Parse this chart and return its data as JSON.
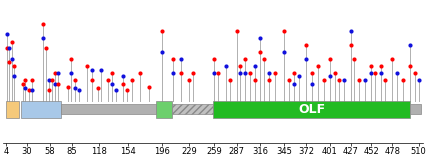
{
  "x_ticks": [
    4,
    30,
    58,
    85,
    118,
    154,
    196,
    229,
    259,
    287,
    316,
    345,
    372,
    401,
    427,
    452,
    478,
    510
  ],
  "x_min": 1,
  "x_max": 515,
  "y_min": 0,
  "y_max": 10,
  "domain_base": 1.8,
  "domain_height_full": 1.2,
  "domain_height_thin": 0.7,
  "domains": [
    {
      "start": 4,
      "end": 20,
      "color": "#F5C97A",
      "label": "",
      "thin": false,
      "hatch": false
    },
    {
      "start": 22,
      "end": 72,
      "color": "#A8C8E8",
      "label": "",
      "thin": false,
      "hatch": false
    },
    {
      "start": 72,
      "end": 188,
      "color": "#B0B0B0",
      "label": "",
      "thin": true,
      "hatch": false
    },
    {
      "start": 188,
      "end": 208,
      "color": "#6CCF6C",
      "label": "",
      "thin": false,
      "hatch": false
    },
    {
      "start": 208,
      "end": 258,
      "color": "#C0C0C0",
      "label": "",
      "thin": true,
      "hatch": true
    },
    {
      "start": 258,
      "end": 500,
      "color": "#22BB22",
      "label": "OLF",
      "thin": false,
      "hatch": false
    },
    {
      "start": 500,
      "end": 513,
      "color": "#B0B0B0",
      "label": "",
      "thin": true,
      "hatch": false
    }
  ],
  "lollipops": [
    {
      "x": 5,
      "stems": [
        {
          "color": "red",
          "y": 6.8
        },
        {
          "color": "blue",
          "y": 7.8
        }
      ]
    },
    {
      "x": 8,
      "stems": [
        {
          "color": "red",
          "y": 5.8
        },
        {
          "color": "blue",
          "y": 6.8
        }
      ]
    },
    {
      "x": 11,
      "stems": [
        {
          "color": "red",
          "y": 7.2
        },
        {
          "color": "blue",
          "y": 6.0
        }
      ]
    },
    {
      "x": 14,
      "stems": [
        {
          "color": "red",
          "y": 5.5
        },
        {
          "color": "blue",
          "y": 4.8
        }
      ]
    },
    {
      "x": 25,
      "stems": [
        {
          "color": "red",
          "y": 4.2
        }
      ]
    },
    {
      "x": 28,
      "stems": [
        {
          "color": "red",
          "y": 4.5
        },
        {
          "color": "blue",
          "y": 3.9
        }
      ]
    },
    {
      "x": 32,
      "stems": [
        {
          "color": "red",
          "y": 3.8
        }
      ]
    },
    {
      "x": 36,
      "stems": [
        {
          "color": "red",
          "y": 4.5
        },
        {
          "color": "blue",
          "y": 3.8
        }
      ]
    },
    {
      "x": 50,
      "stems": [
        {
          "color": "red",
          "y": 8.5
        },
        {
          "color": "blue",
          "y": 7.5
        }
      ]
    },
    {
      "x": 53,
      "stems": [
        {
          "color": "red",
          "y": 6.8
        }
      ]
    },
    {
      "x": 57,
      "stems": [
        {
          "color": "red",
          "y": 3.8
        },
        {
          "color": "blue",
          "y": 4.5
        }
      ]
    },
    {
      "x": 60,
      "stems": [
        {
          "color": "red",
          "y": 4.5
        }
      ]
    },
    {
      "x": 64,
      "stems": [
        {
          "color": "red",
          "y": 5.0
        },
        {
          "color": "blue",
          "y": 4.2
        }
      ]
    },
    {
      "x": 68,
      "stems": [
        {
          "color": "red",
          "y": 4.2
        },
        {
          "color": "blue",
          "y": 5.0
        }
      ]
    },
    {
      "x": 80,
      "stems": [
        {
          "color": "red",
          "y": 4.0
        }
      ]
    },
    {
      "x": 84,
      "stems": [
        {
          "color": "red",
          "y": 6.0
        },
        {
          "color": "blue",
          "y": 5.0
        }
      ]
    },
    {
      "x": 89,
      "stems": [
        {
          "color": "red",
          "y": 4.5
        },
        {
          "color": "blue",
          "y": 3.9
        }
      ]
    },
    {
      "x": 94,
      "stems": [
        {
          "color": "blue",
          "y": 3.8
        }
      ]
    },
    {
      "x": 104,
      "stems": [
        {
          "color": "red",
          "y": 5.5
        }
      ]
    },
    {
      "x": 109,
      "stems": [
        {
          "color": "red",
          "y": 4.5
        },
        {
          "color": "blue",
          "y": 5.2
        }
      ]
    },
    {
      "x": 117,
      "stems": [
        {
          "color": "red",
          "y": 3.9
        }
      ]
    },
    {
      "x": 121,
      "stems": [
        {
          "color": "blue",
          "y": 5.2
        }
      ]
    },
    {
      "x": 129,
      "stems": [
        {
          "color": "red",
          "y": 4.5
        }
      ]
    },
    {
      "x": 134,
      "stems": [
        {
          "color": "red",
          "y": 5.0
        },
        {
          "color": "blue",
          "y": 4.2
        }
      ]
    },
    {
      "x": 139,
      "stems": [
        {
          "color": "blue",
          "y": 3.8
        }
      ]
    },
    {
      "x": 147,
      "stems": [
        {
          "color": "red",
          "y": 4.2
        },
        {
          "color": "blue",
          "y": 4.8
        }
      ]
    },
    {
      "x": 153,
      "stems": [
        {
          "color": "red",
          "y": 3.8
        }
      ]
    },
    {
      "x": 159,
      "stems": [
        {
          "color": "red",
          "y": 4.5
        }
      ]
    },
    {
      "x": 169,
      "stems": [
        {
          "color": "red",
          "y": 5.0
        }
      ]
    },
    {
      "x": 180,
      "stems": [
        {
          "color": "red",
          "y": 4.0
        }
      ]
    },
    {
      "x": 196,
      "stems": [
        {
          "color": "red",
          "y": 8.0
        },
        {
          "color": "blue",
          "y": 6.5
        }
      ]
    },
    {
      "x": 209,
      "stems": [
        {
          "color": "red",
          "y": 6.0
        },
        {
          "color": "blue",
          "y": 5.0
        }
      ]
    },
    {
      "x": 219,
      "stems": [
        {
          "color": "red",
          "y": 5.0
        },
        {
          "color": "blue",
          "y": 6.0
        }
      ]
    },
    {
      "x": 228,
      "stems": [
        {
          "color": "red",
          "y": 4.5
        }
      ]
    },
    {
      "x": 234,
      "stems": [
        {
          "color": "red",
          "y": 5.0
        }
      ]
    },
    {
      "x": 259,
      "stems": [
        {
          "color": "red",
          "y": 6.0
        },
        {
          "color": "blue",
          "y": 5.0
        }
      ]
    },
    {
      "x": 264,
      "stems": [
        {
          "color": "red",
          "y": 5.0
        }
      ]
    },
    {
      "x": 274,
      "stems": [
        {
          "color": "blue",
          "y": 5.5
        }
      ]
    },
    {
      "x": 279,
      "stems": [
        {
          "color": "red",
          "y": 4.5
        }
      ]
    },
    {
      "x": 287,
      "stems": [
        {
          "color": "red",
          "y": 8.0
        }
      ]
    },
    {
      "x": 291,
      "stems": [
        {
          "color": "red",
          "y": 5.5
        },
        {
          "color": "blue",
          "y": 5.0
        }
      ]
    },
    {
      "x": 297,
      "stems": [
        {
          "color": "red",
          "y": 6.0
        },
        {
          "color": "blue",
          "y": 5.0
        }
      ]
    },
    {
      "x": 303,
      "stems": [
        {
          "color": "red",
          "y": 5.0
        }
      ]
    },
    {
      "x": 309,
      "stems": [
        {
          "color": "red",
          "y": 4.5
        },
        {
          "color": "blue",
          "y": 5.5
        }
      ]
    },
    {
      "x": 315,
      "stems": [
        {
          "color": "red",
          "y": 6.5
        },
        {
          "color": "blue",
          "y": 7.5
        }
      ]
    },
    {
      "x": 321,
      "stems": [
        {
          "color": "red",
          "y": 6.0
        }
      ]
    },
    {
      "x": 327,
      "stems": [
        {
          "color": "red",
          "y": 4.5
        },
        {
          "color": "blue",
          "y": 5.0
        }
      ]
    },
    {
      "x": 334,
      "stems": [
        {
          "color": "red",
          "y": 5.0
        }
      ]
    },
    {
      "x": 345,
      "stems": [
        {
          "color": "red",
          "y": 8.0
        },
        {
          "color": "blue",
          "y": 6.5
        }
      ]
    },
    {
      "x": 351,
      "stems": [
        {
          "color": "red",
          "y": 4.5
        }
      ]
    },
    {
      "x": 357,
      "stems": [
        {
          "color": "red",
          "y": 5.0
        },
        {
          "color": "blue",
          "y": 4.2
        }
      ]
    },
    {
      "x": 363,
      "stems": [
        {
          "color": "blue",
          "y": 4.8
        }
      ]
    },
    {
      "x": 372,
      "stems": [
        {
          "color": "red",
          "y": 7.0
        },
        {
          "color": "blue",
          "y": 6.0
        }
      ]
    },
    {
      "x": 379,
      "stems": [
        {
          "color": "red",
          "y": 5.0
        },
        {
          "color": "blue",
          "y": 4.2
        }
      ]
    },
    {
      "x": 387,
      "stems": [
        {
          "color": "red",
          "y": 5.5
        }
      ]
    },
    {
      "x": 394,
      "stems": [
        {
          "color": "red",
          "y": 4.5
        }
      ]
    },
    {
      "x": 401,
      "stems": [
        {
          "color": "red",
          "y": 6.0
        },
        {
          "color": "blue",
          "y": 4.8
        }
      ]
    },
    {
      "x": 407,
      "stems": [
        {
          "color": "red",
          "y": 5.0
        }
      ]
    },
    {
      "x": 413,
      "stems": [
        {
          "color": "red",
          "y": 4.5
        }
      ]
    },
    {
      "x": 419,
      "stems": [
        {
          "color": "blue",
          "y": 4.5
        }
      ]
    },
    {
      "x": 427,
      "stems": [
        {
          "color": "red",
          "y": 7.0
        },
        {
          "color": "blue",
          "y": 8.0
        }
      ]
    },
    {
      "x": 431,
      "stems": [
        {
          "color": "red",
          "y": 6.0
        }
      ]
    },
    {
      "x": 437,
      "stems": [
        {
          "color": "red",
          "y": 4.5
        }
      ]
    },
    {
      "x": 444,
      "stems": [
        {
          "color": "blue",
          "y": 4.5
        }
      ]
    },
    {
      "x": 452,
      "stems": [
        {
          "color": "red",
          "y": 5.5
        },
        {
          "color": "blue",
          "y": 5.0
        }
      ]
    },
    {
      "x": 457,
      "stems": [
        {
          "color": "red",
          "y": 5.0
        }
      ]
    },
    {
      "x": 464,
      "stems": [
        {
          "color": "red",
          "y": 5.5
        },
        {
          "color": "blue",
          "y": 5.0
        }
      ]
    },
    {
      "x": 469,
      "stems": [
        {
          "color": "red",
          "y": 4.5
        }
      ]
    },
    {
      "x": 478,
      "stems": [
        {
          "color": "red",
          "y": 6.0
        }
      ]
    },
    {
      "x": 484,
      "stems": [
        {
          "color": "blue",
          "y": 5.0
        }
      ]
    },
    {
      "x": 491,
      "stems": [
        {
          "color": "red",
          "y": 4.5
        }
      ]
    },
    {
      "x": 500,
      "stems": [
        {
          "color": "red",
          "y": 5.5
        },
        {
          "color": "blue",
          "y": 7.0
        }
      ]
    },
    {
      "x": 506,
      "stems": [
        {
          "color": "red",
          "y": 5.0
        }
      ]
    },
    {
      "x": 510,
      "stems": [
        {
          "color": "blue",
          "y": 4.5
        }
      ]
    }
  ],
  "stem_color": "#B0B0B0",
  "red_color": "#FF0000",
  "blue_color": "#1010DD",
  "circle_size": 9,
  "olf_label_color": "#FFFFFF",
  "olf_label_fontsize": 9,
  "tick_fontsize": 6.0
}
